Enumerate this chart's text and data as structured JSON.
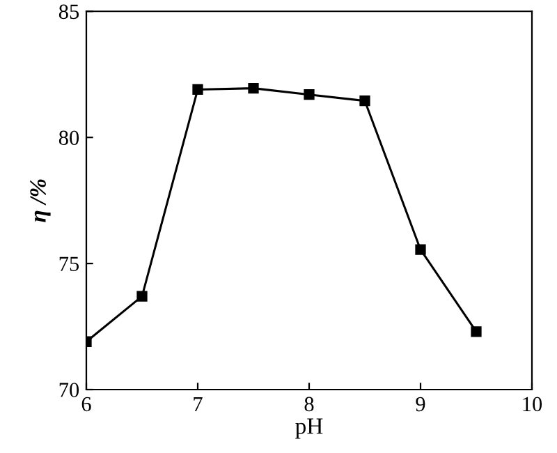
{
  "chart_data": {
    "type": "line",
    "xlabel": "pH",
    "ylabel": "η /%",
    "x": [
      6,
      6.5,
      7,
      7.5,
      8,
      8.5,
      9,
      9.5
    ],
    "series": [
      {
        "color": "#000000",
        "values": [
          71.9,
          73.7,
          81.9,
          81.95,
          81.7,
          81.45,
          75.55,
          72.3
        ]
      }
    ],
    "xlim": [
      6,
      10
    ],
    "xticks": [
      6,
      7,
      8,
      9,
      10
    ],
    "ylim": [
      70,
      85
    ],
    "yticks": [
      70,
      75,
      80,
      85
    ],
    "marker": "square",
    "line_style": "solid",
    "grid": false,
    "legend": false
  }
}
